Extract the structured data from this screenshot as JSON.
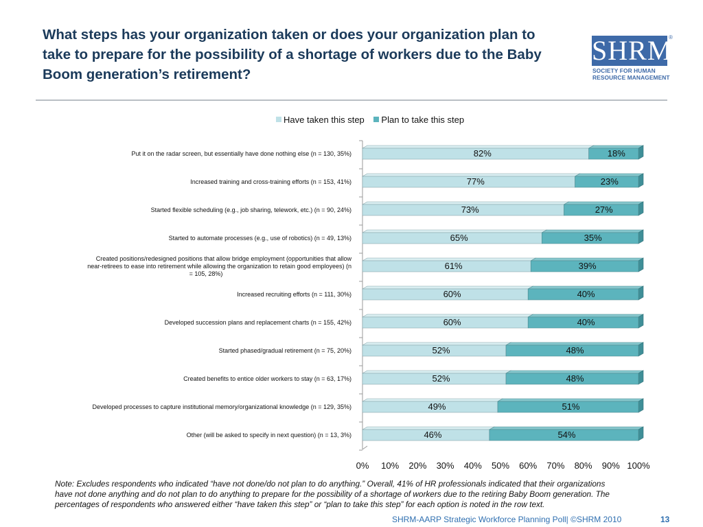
{
  "header": {
    "title": "What steps has your organization taken or does your organization plan to take to prepare for the possibility of a shortage of workers due to the Baby Boom generation’s retirement?"
  },
  "logo": {
    "mark": "SHRM",
    "line1": "SOCIETY FOR HUMAN",
    "line2": "RESOURCE MANAGEMENT",
    "registered": "®"
  },
  "colors": {
    "taken": "#bfe1e7",
    "plan": "#5cb4bd",
    "title": "#1b3a5a",
    "brand": "#3e6aa8",
    "footer": "#2f6fb0"
  },
  "chart_data": {
    "type": "bar",
    "orientation": "horizontal",
    "stacked": true,
    "percent_stacked": true,
    "title": "",
    "legend_position": "top",
    "categories": [
      "Put it on the radar screen, but essentially have done nothing else (n = 130, 35%)",
      "Increased training and cross-training efforts (n = 153, 41%)",
      "Started flexible scheduling (e.g., job sharing, telework, etc.) (n = 90, 24%)",
      "Started to automate processes (e.g., use of robotics) (n = 49, 13%)",
      "Created positions/redesigned positions that allow bridge employment (opportunities that allow near-retirees to ease into retirement while allowing the organization to retain good employees) (n = 105, 28%)",
      "Increased recruiting efforts (n = 111, 30%)",
      "Developed succession plans and replacement charts (n = 155, 42%)",
      "Started phased/gradual retirement (n = 75, 20%)",
      "Created benefits to entice older workers to stay (n = 63, 17%)",
      "Developed processes to capture institutional memory/organizational knowledge (n = 129, 35%)",
      "Other (will be asked to specify in next question) (n = 13, 3%)"
    ],
    "series": [
      {
        "name": "Have taken this step",
        "color": "#bfe1e7",
        "values": [
          82,
          77,
          73,
          65,
          61,
          60,
          60,
          52,
          52,
          49,
          46
        ]
      },
      {
        "name": "Plan to take this step",
        "color": "#5cb4bd",
        "values": [
          18,
          23,
          27,
          35,
          39,
          40,
          40,
          48,
          48,
          51,
          54
        ]
      }
    ],
    "xlim": [
      0,
      100
    ],
    "xticks": [
      "0%",
      "10%",
      "20%",
      "30%",
      "40%",
      "50%",
      "60%",
      "70%",
      "80%",
      "90%",
      "100%"
    ],
    "xlabel": "",
    "ylabel": "",
    "grid": false
  },
  "note": "Note: Excludes respondents who indicated “have not done/do not plan to do anything.” Overall, 41% of HR professionals indicated that their organizations have not done anything and do not plan to do anything to prepare for the possibility of a shortage of workers due to the retiring Baby Boom generation. The percentages of respondents who answered either “have taken this step” or “plan to take this step” for each option is noted in the row text.",
  "footer": {
    "source": "SHRM-AARP Strategic Workforce Planning Poll| ©SHRM 2010",
    "page_number": "13"
  }
}
